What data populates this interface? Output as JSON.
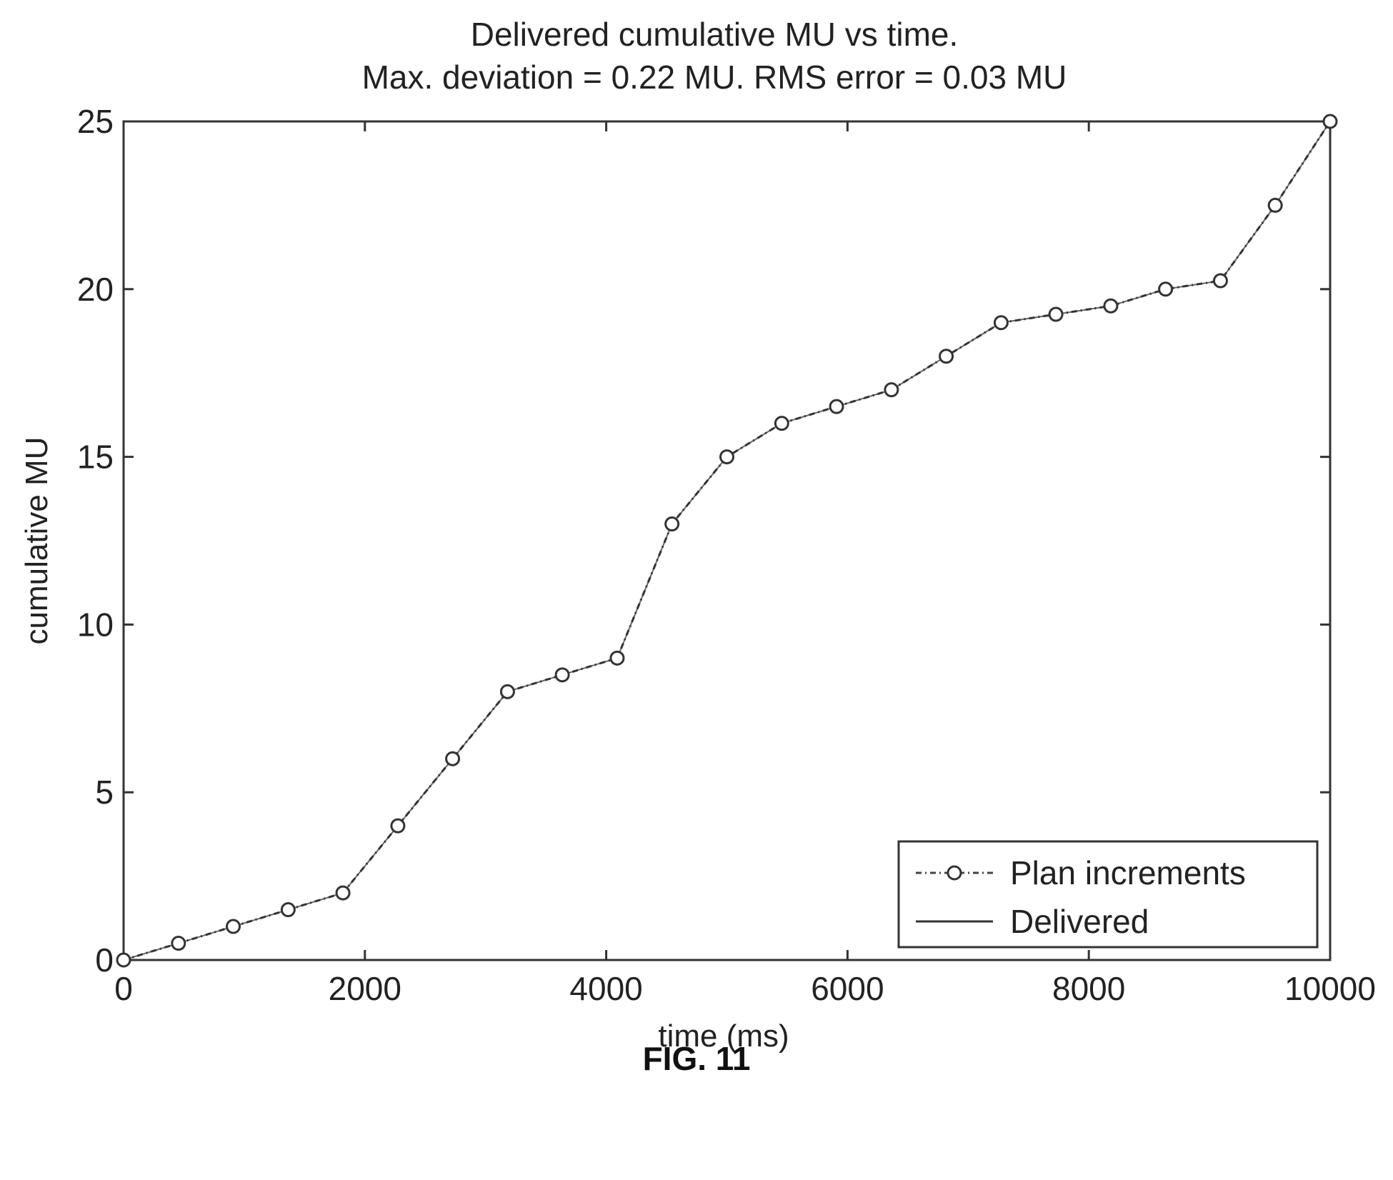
{
  "figure_caption": "FIG. 11",
  "chart_data": {
    "type": "line",
    "title": "Delivered cumulative MU vs time.",
    "subtitle": "Max. deviation = 0.22 MU. RMS error = 0.03 MU",
    "xlabel": "time (ms)",
    "ylabel": "cumulative MU",
    "xlim": [
      0,
      10000
    ],
    "ylim": [
      0,
      25
    ],
    "x_ticks": [
      0,
      2000,
      4000,
      6000,
      8000,
      10000
    ],
    "x_tick_labels": [
      "0",
      "2000",
      "4000",
      "6000",
      "8000",
      "10000"
    ],
    "y_ticks": [
      0,
      5,
      10,
      15,
      20,
      25
    ],
    "y_tick_labels": [
      "0",
      "5",
      "10",
      "15",
      "20",
      "25"
    ],
    "grid": false,
    "legend_position": "bottom-right",
    "series": [
      {
        "name": "Plan increments",
        "style": "dash-dot-markers",
        "color": "#333333",
        "x": [
          0,
          455,
          909,
          1364,
          1818,
          2273,
          2727,
          3182,
          3636,
          4091,
          4545,
          5000,
          5455,
          5909,
          6364,
          6818,
          7273,
          7727,
          8182,
          8636,
          9091,
          9545,
          10000
        ],
        "y": [
          0,
          0.5,
          1,
          1.5,
          2,
          4,
          6,
          8,
          8.5,
          9,
          13,
          15,
          16,
          16.5,
          17,
          18,
          19,
          19.25,
          19.5,
          20,
          20.25,
          22.5,
          25
        ]
      },
      {
        "name": "Delivered",
        "style": "solid",
        "color": "#333333",
        "x": [
          0,
          455,
          909,
          1364,
          1818,
          2273,
          2727,
          3182,
          3636,
          4091,
          4545,
          5000,
          5455,
          5909,
          6364,
          6818,
          7273,
          7727,
          8182,
          8636,
          9091,
          9545,
          10000
        ],
        "y": [
          0,
          0.5,
          1,
          1.5,
          2,
          4,
          6,
          8,
          8.5,
          9,
          13,
          15,
          16,
          16.5,
          17,
          18,
          19,
          19.25,
          19.5,
          20,
          20.25,
          22.5,
          25
        ]
      }
    ]
  }
}
